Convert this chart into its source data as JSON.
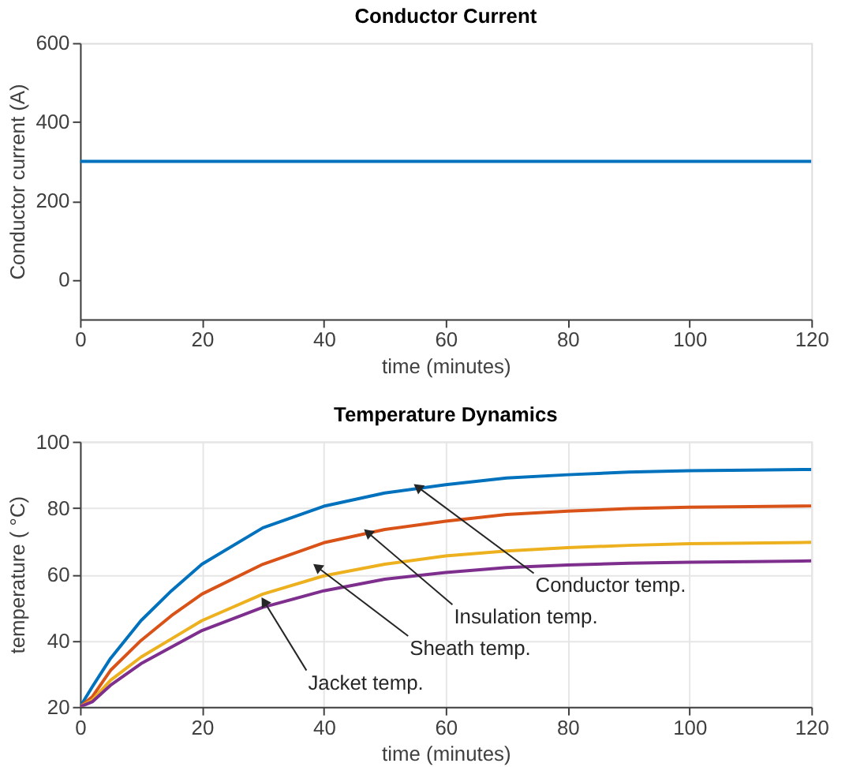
{
  "chart_data": [
    {
      "type": "line",
      "title": "Conductor Current",
      "xlabel": "time (minutes)",
      "ylabel": "Conductor current (A)",
      "xlim": [
        0,
        120
      ],
      "ylim": [
        -100,
        600
      ],
      "xticks": [
        0,
        20,
        40,
        60,
        80,
        100,
        120
      ],
      "yticks": [
        0,
        200,
        400,
        600
      ],
      "grid": false,
      "series": [
        {
          "color": "#0072bd",
          "x": [
            0,
            120
          ],
          "values": [
            300,
            300
          ]
        }
      ]
    },
    {
      "type": "line",
      "title": "Temperature Dynamics",
      "xlabel": "time (minutes)",
      "ylabel": "temperature ( °C)",
      "xlim": [
        0,
        120
      ],
      "ylim": [
        20,
        100
      ],
      "xticks": [
        0,
        20,
        40,
        60,
        80,
        100,
        120
      ],
      "yticks": [
        20,
        40,
        60,
        80,
        100
      ],
      "grid": true,
      "x": [
        0,
        2,
        5,
        10,
        15,
        20,
        30,
        40,
        50,
        60,
        70,
        80,
        90,
        100,
        110,
        120
      ],
      "series": [
        {
          "color": "#0072bd",
          "values": [
            20,
            26,
            34.6,
            46,
            55,
            63,
            74,
            80.5,
            84.5,
            87,
            89,
            90,
            90.8,
            91.2,
            91.4,
            91.6
          ]
        },
        {
          "color": "#d95319",
          "values": [
            20,
            23,
            31,
            40,
            47.5,
            54,
            63,
            69.5,
            73.5,
            76,
            78,
            79,
            79.8,
            80.2,
            80.4,
            80.6
          ]
        },
        {
          "color": "#edb120",
          "values": [
            20,
            22,
            28,
            35,
            40.5,
            46,
            54,
            59.5,
            63,
            65.5,
            67,
            68,
            68.7,
            69.2,
            69.4,
            69.6
          ]
        },
        {
          "color": "#7e2f8e",
          "values": [
            20,
            21.5,
            26.5,
            33,
            38,
            43,
            50,
            55,
            58.5,
            60.5,
            62,
            62.8,
            63.3,
            63.6,
            63.8,
            64
          ]
        }
      ],
      "annotations": [
        {
          "text": "Conductor temp.",
          "x": 55.4,
          "y": 86.3
        },
        {
          "text": "Insulation temp.",
          "x": 47.2,
          "y": 72.6
        },
        {
          "text": "Sheath temp.",
          "x": 38.9,
          "y": 62.2
        },
        {
          "text": "Jacket temp.",
          "x": 30.2,
          "y": 51.8
        }
      ]
    }
  ]
}
